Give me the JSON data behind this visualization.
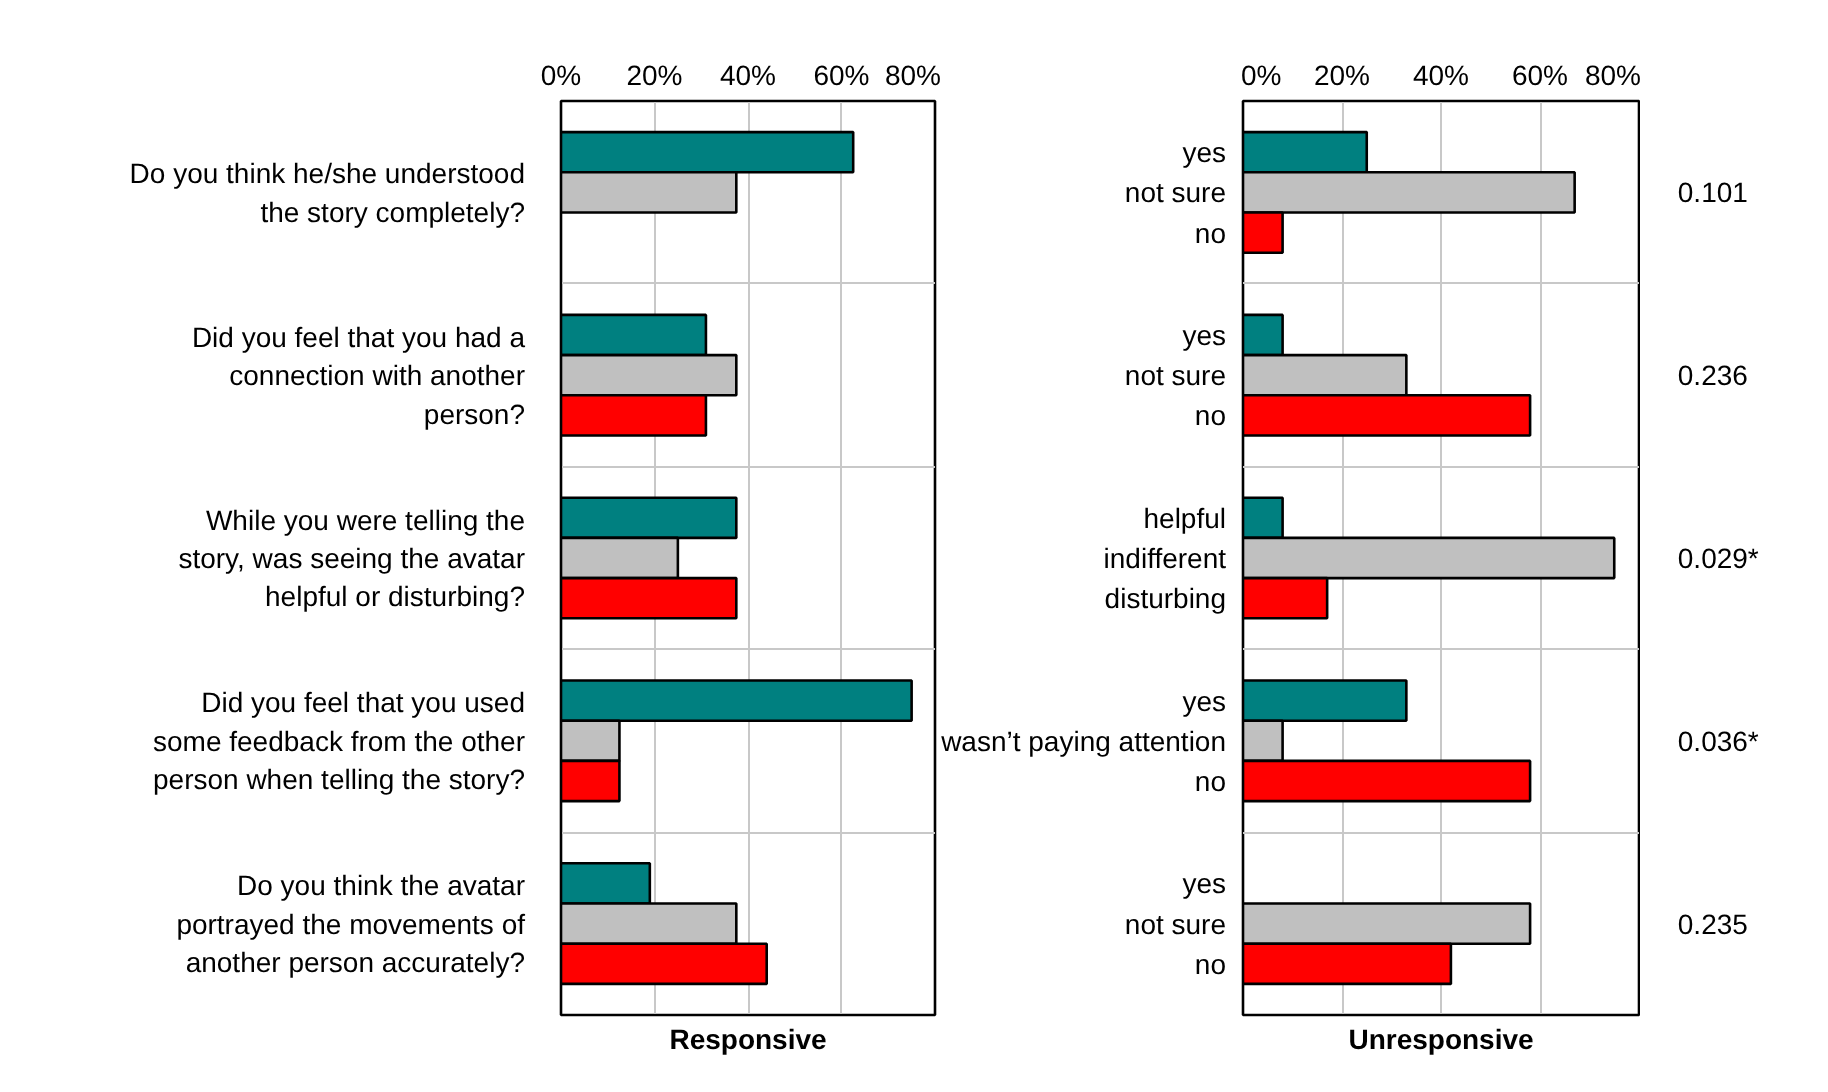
{
  "chart_data": [
    {
      "type": "bar",
      "orientation": "horizontal",
      "xlabel": "Responsive",
      "categories": [
        "Do you think he/she understood the story completely?",
        "Did you feel that you had a connection with another person?",
        "While you were telling the story, was seeing the avatar helpful or disturbing?",
        "Did you feel that you used some feedback from the other person when telling the story?",
        "Do you think the avatar portrayed the movements of another person accurately?"
      ],
      "series": [
        {
          "color": "#008080",
          "values": [
            62.5,
            31,
            37.5,
            75,
            19
          ]
        },
        {
          "color": "#c0c0c0",
          "values": [
            37.5,
            37.5,
            25,
            12.5,
            37.5
          ]
        },
        {
          "color": "#ff0000",
          "values": [
            null,
            31,
            37.5,
            12.5,
            44
          ]
        }
      ],
      "xlim": [
        0,
        80
      ],
      "xticks": [
        {
          "value": 0,
          "label": "0%"
        },
        {
          "value": 20,
          "label": "20%"
        },
        {
          "value": 40,
          "label": "40%"
        },
        {
          "value": 60,
          "label": "60%"
        },
        {
          "value": 80,
          "label": "80%"
        }
      ],
      "grid": true
    },
    {
      "type": "bar",
      "orientation": "horizontal",
      "xlabel": "Unresponsive",
      "categories": [
        null,
        null,
        null,
        null,
        null
      ],
      "series": [
        {
          "color": "#008080",
          "values": [
            25,
            8,
            8,
            33,
            null
          ]
        },
        {
          "color": "#c0c0c0",
          "values": [
            67,
            33,
            75,
            8,
            58
          ]
        },
        {
          "color": "#ff0000",
          "values": [
            8,
            58,
            17,
            58,
            42
          ]
        }
      ],
      "xlim": [
        0,
        80
      ],
      "xticks": [
        {
          "value": 0,
          "label": "0%"
        },
        {
          "value": 20,
          "label": "20%"
        },
        {
          "value": 40,
          "label": "40%"
        },
        {
          "value": 60,
          "label": "60%"
        },
        {
          "value": 80,
          "label": "80%"
        }
      ],
      "grid": true,
      "annotations": [
        "yes",
        "not sure",
        "no",
        "0.101",
        "yes",
        "not sure",
        "no",
        "0.236",
        "helpful",
        "indifferent",
        "disturbing",
        "0.029*",
        "yes",
        "wasn’t paying attention",
        "no",
        "0.036*",
        "yes",
        "not sure",
        "no",
        "0.235"
      ]
    }
  ]
}
